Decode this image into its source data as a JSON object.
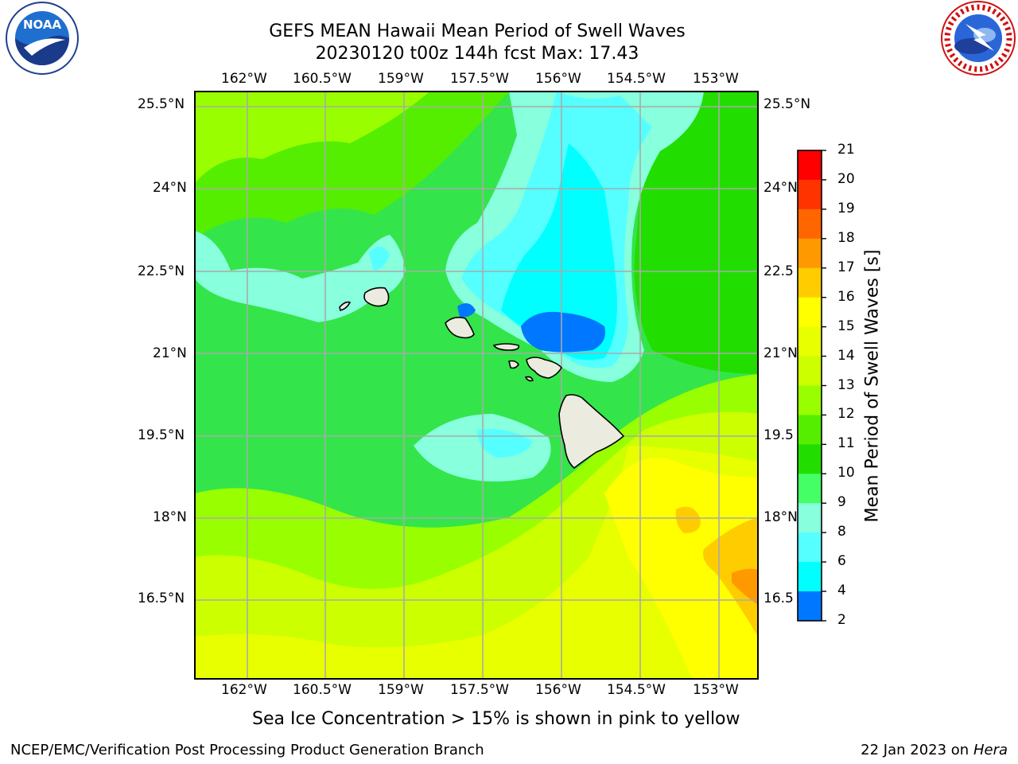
{
  "title": {
    "line1": "GEFS MEAN Hawaii Mean Period of Swell Waves",
    "line2": "20230120 t00z 144h fcst   Max: 17.43"
  },
  "logos": {
    "left": "NOAA",
    "left_ring": "NATIONAL OCEANIC AND ATMOSPHERIC ADMINISTRATION · U.S. DEPARTMENT OF COMMERCE",
    "right_ring": "NATIONAL WEATHER SERVICE"
  },
  "map": {
    "lon_ticks": [
      "162°W",
      "160.5°W",
      "159°W",
      "157.5°W",
      "156°W",
      "154.5°W",
      "153°W"
    ],
    "lat_ticks_left": [
      "25.5°N",
      "24°N",
      "22.5°N",
      "21°N",
      "19.5°N",
      "18°N",
      "16.5°N"
    ],
    "lat_ticks_right": [
      "25.5°N",
      "24°N",
      "22.5",
      "21°N",
      "19.5",
      "18°N",
      "16.5"
    ],
    "colors": {
      "land": "#ecebe0",
      "grid": "#aaaaaa",
      "coast": "#000000"
    }
  },
  "colorbar": {
    "label": "Mean Period of Swell Waves [s]",
    "ticks": [
      "21",
      "20",
      "19",
      "18",
      "17",
      "16",
      "15",
      "14",
      "13",
      "12",
      "11",
      "10",
      "9",
      "8",
      "6",
      "4",
      "2"
    ],
    "colors_top_to_bottom": [
      "#ff0000",
      "#ff3300",
      "#ff6600",
      "#ff9900",
      "#ffcc00",
      "#ffff00",
      "#e8ff00",
      "#ccff00",
      "#99ff00",
      "#55ee00",
      "#22dd00",
      "#44ff66",
      "#88ffdd",
      "#55ffff",
      "#00ffff",
      "#0077ff",
      "#0000ff"
    ]
  },
  "footer": {
    "note": "Sea Ice Concentration > 15% is shown in pink to yellow",
    "credit": "NCEP/EMC/Verification Post Processing Product Generation Branch",
    "date": "22 Jan 2023 on ",
    "machine": "Hera"
  }
}
